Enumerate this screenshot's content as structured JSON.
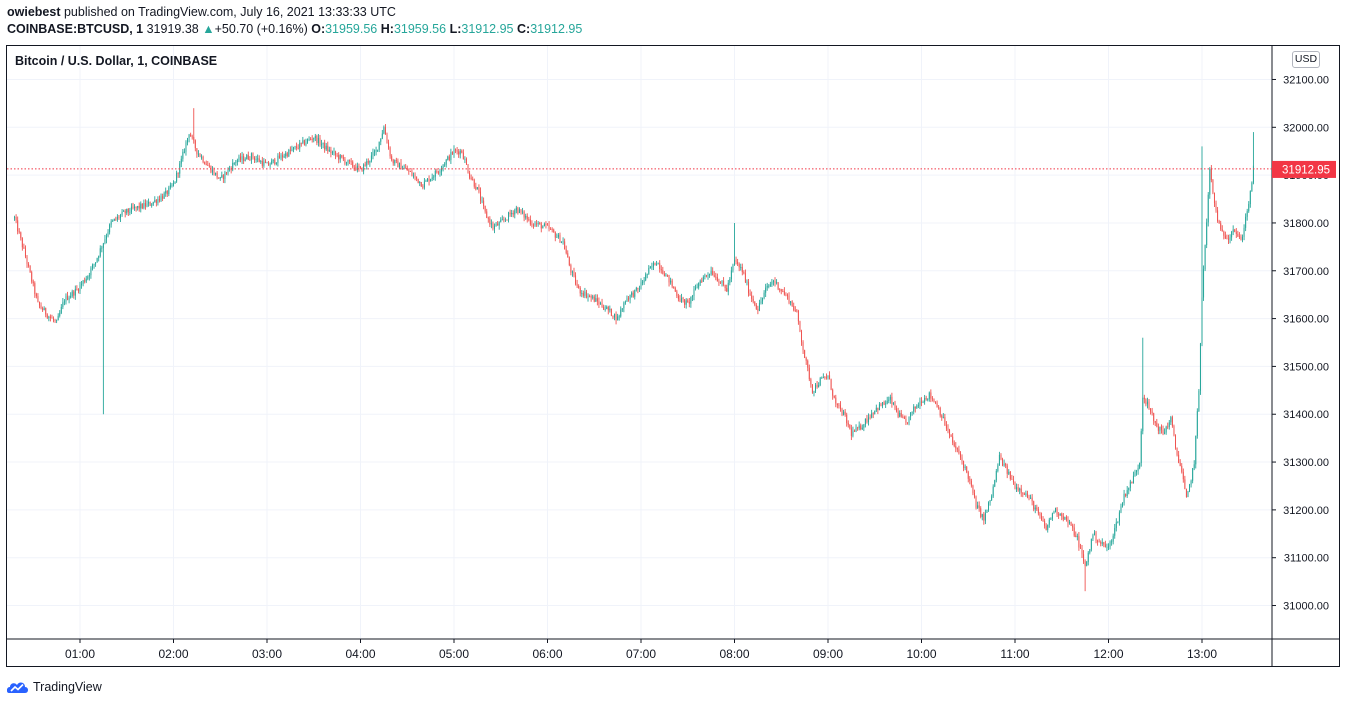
{
  "header": {
    "author": "owiebest",
    "published_text": "published on TradingView.com, July 16, 2021 13:33:33 UTC",
    "symbol": "COINBASE:BTCUSD, 1",
    "price": "31919.38",
    "change_arrow": "▲",
    "change": "+50.70 (+0.16%)",
    "o_label": "O:",
    "o_value": "31959.56",
    "h_label": "H:",
    "h_value": "31959.56",
    "l_label": "L:",
    "l_value": "31912.95",
    "c_label": "C:",
    "c_value": "31912.95"
  },
  "chart_title": "Bitcoin / U.S. Dollar, 1, COINBASE",
  "currency": "USD",
  "footer": {
    "brand": "TradingView",
    "logo_icon": "tradingview-cloud-icon"
  },
  "colors": {
    "up": "#26a69a",
    "down": "#ef5350",
    "grid": "#f0f3fa",
    "last_price": "#f23645"
  },
  "chart_data": {
    "type": "candlestick",
    "title": "Bitcoin / U.S. Dollar, 1, COINBASE",
    "ylim": [
      30930,
      32170
    ],
    "y_ticks": [
      "32100.00",
      "32000.00",
      "31900.00",
      "31800.00",
      "31700.00",
      "31600.00",
      "31500.00",
      "31400.00",
      "31300.00",
      "31200.00",
      "31100.00",
      "31000.00"
    ],
    "x_ticks": [
      "01:00",
      "02:00",
      "03:00",
      "04:00",
      "05:00",
      "06:00",
      "07:00",
      "08:00",
      "09:00",
      "10:00",
      "11:00",
      "12:00",
      "13:00"
    ],
    "last_price": 31912.95,
    "last_price_label": "31912.95",
    "grid": true,
    "price_path": [
      [
        "00:18",
        31810
      ],
      [
        "00:25",
        31730
      ],
      [
        "00:33",
        31630
      ],
      [
        "00:40",
        31605
      ],
      [
        "00:45",
        31590
      ],
      [
        "00:50",
        31640
      ],
      [
        "00:58",
        31660
      ],
      [
        "01:05",
        31690
      ],
      [
        "01:10",
        31720
      ],
      [
        "01:15",
        31760
      ],
      [
        "01:20",
        31800
      ],
      [
        "01:28",
        31820
      ],
      [
        "01:35",
        31830
      ],
      [
        "01:45",
        31840
      ],
      [
        "01:55",
        31860
      ],
      [
        "02:00",
        31880
      ],
      [
        "02:05",
        31930
      ],
      [
        "02:10",
        31990
      ],
      [
        "02:15",
        31950
      ],
      [
        "02:22",
        31920
      ],
      [
        "02:30",
        31890
      ],
      [
        "02:40",
        31930
      ],
      [
        "02:50",
        31940
      ],
      [
        "03:00",
        31920
      ],
      [
        "03:10",
        31940
      ],
      [
        "03:20",
        31960
      ],
      [
        "03:30",
        31980
      ],
      [
        "03:40",
        31950
      ],
      [
        "03:50",
        31930
      ],
      [
        "04:00",
        31910
      ],
      [
        "04:10",
        31950
      ],
      [
        "04:15",
        32000
      ],
      [
        "04:20",
        31930
      ],
      [
        "04:30",
        31910
      ],
      [
        "04:40",
        31880
      ],
      [
        "04:50",
        31910
      ],
      [
        "05:00",
        31950
      ],
      [
        "05:05",
        31950
      ],
      [
        "05:10",
        31900
      ],
      [
        "05:15",
        31870
      ],
      [
        "05:20",
        31820
      ],
      [
        "05:25",
        31790
      ],
      [
        "05:30",
        31800
      ],
      [
        "05:40",
        31830
      ],
      [
        "05:50",
        31800
      ],
      [
        "06:00",
        31790
      ],
      [
        "06:10",
        31760
      ],
      [
        "06:15",
        31700
      ],
      [
        "06:20",
        31660
      ],
      [
        "06:30",
        31640
      ],
      [
        "06:38",
        31620
      ],
      [
        "06:45",
        31600
      ],
      [
        "06:50",
        31640
      ],
      [
        "06:58",
        31660
      ],
      [
        "07:05",
        31700
      ],
      [
        "07:10",
        31720
      ],
      [
        "07:18",
        31680
      ],
      [
        "07:25",
        31640
      ],
      [
        "07:30",
        31630
      ],
      [
        "07:38",
        31680
      ],
      [
        "07:45",
        31700
      ],
      [
        "07:55",
        31660
      ],
      [
        "08:00",
        31720
      ],
      [
        "08:05",
        31700
      ],
      [
        "08:10",
        31650
      ],
      [
        "08:15",
        31620
      ],
      [
        "08:20",
        31660
      ],
      [
        "08:25",
        31680
      ],
      [
        "08:35",
        31640
      ],
      [
        "08:40",
        31610
      ],
      [
        "08:45",
        31520
      ],
      [
        "08:50",
        31450
      ],
      [
        "08:55",
        31470
      ],
      [
        "09:00",
        31480
      ],
      [
        "09:05",
        31420
      ],
      [
        "09:10",
        31400
      ],
      [
        "09:15",
        31360
      ],
      [
        "09:20",
        31370
      ],
      [
        "09:30",
        31410
      ],
      [
        "09:40",
        31430
      ],
      [
        "09:45",
        31400
      ],
      [
        "09:50",
        31380
      ],
      [
        "09:55",
        31410
      ],
      [
        "10:00",
        31430
      ],
      [
        "10:05",
        31440
      ],
      [
        "10:10",
        31420
      ],
      [
        "10:15",
        31380
      ],
      [
        "10:20",
        31340
      ],
      [
        "10:25",
        31310
      ],
      [
        "10:30",
        31270
      ],
      [
        "10:35",
        31210
      ],
      [
        "10:40",
        31180
      ],
      [
        "10:45",
        31230
      ],
      [
        "10:50",
        31310
      ],
      [
        "10:55",
        31280
      ],
      [
        "11:00",
        31250
      ],
      [
        "11:05",
        31240
      ],
      [
        "11:10",
        31220
      ],
      [
        "11:15",
        31190
      ],
      [
        "11:20",
        31160
      ],
      [
        "11:25",
        31200
      ],
      [
        "11:30",
        31190
      ],
      [
        "11:35",
        31170
      ],
      [
        "11:40",
        31140
      ],
      [
        "11:45",
        31080
      ],
      [
        "11:50",
        31150
      ],
      [
        "11:55",
        31130
      ],
      [
        "12:00",
        31120
      ],
      [
        "12:05",
        31170
      ],
      [
        "12:10",
        31230
      ],
      [
        "12:15",
        31260
      ],
      [
        "12:20",
        31300
      ],
      [
        "12:22",
        31440
      ],
      [
        "12:25",
        31420
      ],
      [
        "12:30",
        31380
      ],
      [
        "12:35",
        31360
      ],
      [
        "12:40",
        31390
      ],
      [
        "12:43",
        31330
      ],
      [
        "12:47",
        31280
      ],
      [
        "12:50",
        31220
      ],
      [
        "12:52",
        31250
      ],
      [
        "12:55",
        31300
      ],
      [
        "12:58",
        31450
      ],
      [
        "13:00",
        31650
      ],
      [
        "13:02",
        31750
      ],
      [
        "13:05",
        31910
      ],
      [
        "13:08",
        31840
      ],
      [
        "13:12",
        31780
      ],
      [
        "13:17",
        31770
      ],
      [
        "13:20",
        31790
      ],
      [
        "13:25",
        31760
      ],
      [
        "13:28",
        31810
      ],
      [
        "13:31",
        31860
      ],
      [
        "13:33",
        31913
      ]
    ],
    "notable_wicks": [
      {
        "time": "01:15",
        "low": 31400
      },
      {
        "time": "02:13",
        "high": 32040
      },
      {
        "time": "08:00",
        "high": 31800
      },
      {
        "time": "11:45",
        "low": 31030
      },
      {
        "time": "12:22",
        "high": 31560
      },
      {
        "time": "13:00",
        "high": 31960
      },
      {
        "time": "13:33",
        "high": 31990
      }
    ]
  }
}
